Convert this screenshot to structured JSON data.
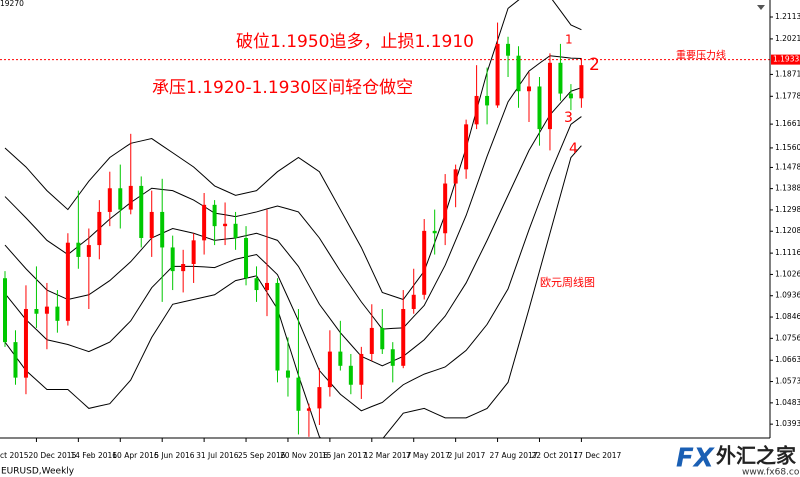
{
  "chart_data": {
    "type": "candlestick",
    "symbol_label": "EURUSD,Weekly",
    "corner_label": "19270",
    "x_clipped_label": "ct 2015",
    "categories": [
      null,
      null,
      null,
      "20 Dec 2015",
      null,
      null,
      null,
      "14 Feb 2016",
      null,
      null,
      null,
      "10 Apr 2016",
      null,
      null,
      null,
      "5 Jun 2016",
      null,
      null,
      null,
      "31 Jul 2016",
      null,
      null,
      null,
      "25 Sep 2016",
      null,
      null,
      null,
      "20 Nov 2016",
      null,
      null,
      null,
      "15 Jan 2017",
      null,
      null,
      null,
      "12 Mar 2017",
      null,
      null,
      null,
      "7 May 2017",
      null,
      null,
      null,
      "2 Jul 2017",
      null,
      null,
      null,
      "27 Aug 2017",
      null,
      null,
      null,
      "22 Oct 2017",
      null,
      null,
      null,
      "17 Dec 2017"
    ],
    "open": [
      1.101,
      1.074,
      1.059,
      1.088,
      1.086,
      1.089,
      1.083,
      1.116,
      1.11,
      1.115,
      1.129,
      1.139,
      1.13,
      1.14,
      1.118,
      1.129,
      1.114,
      1.104,
      1.107,
      1.117,
      1.132,
      1.123,
      1.124,
      1.118,
      1.101,
      1.096,
      1.099,
      1.062,
      1.059,
      1.045,
      1.046,
      1.055,
      1.07,
      1.064,
      1.056,
      1.069,
      1.08,
      1.071,
      1.064,
      1.088,
      1.094,
      1.121,
      1.12,
      1.141,
      1.147,
      1.166,
      1.178,
      1.174,
      1.2,
      1.195,
      1.18,
      1.182,
      1.164,
      1.192,
      1.179,
      1.177
    ],
    "high": [
      1.104,
      1.079,
      1.098,
      1.106,
      1.099,
      1.096,
      1.12,
      1.138,
      1.122,
      1.134,
      1.146,
      1.149,
      1.162,
      1.144,
      1.138,
      1.143,
      1.119,
      1.113,
      1.12,
      1.137,
      1.134,
      1.133,
      1.129,
      1.123,
      1.106,
      1.13,
      1.101,
      1.076,
      1.088,
      1.048,
      1.063,
      1.079,
      1.083,
      1.069,
      1.072,
      1.09,
      1.088,
      1.074,
      1.096,
      1.105,
      1.126,
      1.13,
      1.145,
      1.149,
      1.168,
      1.191,
      1.19,
      1.209,
      1.203,
      1.199,
      1.188,
      1.186,
      1.196,
      1.2,
      1.183,
      1.194
    ],
    "low": [
      1.072,
      1.056,
      1.052,
      1.08,
      1.071,
      1.078,
      1.081,
      1.105,
      1.088,
      1.109,
      1.123,
      1.122,
      1.128,
      1.114,
      1.11,
      1.091,
      1.096,
      1.095,
      1.099,
      1.111,
      1.115,
      1.115,
      1.113,
      1.098,
      1.091,
      1.085,
      1.057,
      1.051,
      1.035,
      1.034,
      1.039,
      1.051,
      1.062,
      1.052,
      1.05,
      1.066,
      1.069,
      1.057,
      1.063,
      1.086,
      1.092,
      1.111,
      1.115,
      1.131,
      1.143,
      1.164,
      1.166,
      1.173,
      1.186,
      1.173,
      1.167,
      1.157,
      1.155,
      1.176,
      1.172,
      1.173
    ],
    "close": [
      1.074,
      1.059,
      1.088,
      1.086,
      1.089,
      1.083,
      1.116,
      1.11,
      1.115,
      1.129,
      1.139,
      1.13,
      1.14,
      1.118,
      1.129,
      1.114,
      1.104,
      1.107,
      1.117,
      1.132,
      1.123,
      1.124,
      1.118,
      1.101,
      1.096,
      1.099,
      1.062,
      1.059,
      1.045,
      1.046,
      1.055,
      1.07,
      1.064,
      1.056,
      1.069,
      1.08,
      1.071,
      1.064,
      1.088,
      1.094,
      1.121,
      1.12,
      1.141,
      1.147,
      1.166,
      1.178,
      1.174,
      1.2,
      1.195,
      1.18,
      1.182,
      1.164,
      1.192,
      1.179,
      1.177,
      1.191
    ],
    "up_color": "#ff0000",
    "down_color": "#00c800",
    "bands": [
      {
        "color": "#000000",
        "values": [
          1.156,
          1.152,
          1.148,
          1.143,
          1.138,
          1.134,
          1.13,
          1.136,
          1.142,
          1.147,
          1.152,
          1.155,
          1.158,
          1.159,
          1.16,
          1.157,
          1.154,
          1.151,
          1.148,
          1.144,
          1.14,
          1.138,
          1.136,
          1.137,
          1.138,
          1.142,
          1.146,
          1.149,
          1.152,
          1.149,
          1.146,
          1.138,
          1.13,
          1.122,
          1.114,
          1.1045,
          1.095,
          1.0935,
          1.092,
          1.098,
          1.104,
          1.116,
          1.128,
          1.142,
          1.156,
          1.172,
          1.188,
          1.2015,
          1.215,
          1.2185,
          1.222,
          1.221,
          1.22,
          1.214,
          1.208,
          1.206
        ]
      },
      {
        "color": "#000000",
        "values": [
          1.1355,
          1.131,
          1.1265,
          1.1218,
          1.117,
          1.114,
          1.111,
          1.1145,
          1.118,
          1.122,
          1.126,
          1.1295,
          1.133,
          1.136,
          1.139,
          1.1385,
          1.138,
          1.136,
          1.134,
          1.1313,
          1.1285,
          1.1278,
          1.127,
          1.128,
          1.129,
          1.1303,
          1.1315,
          1.1303,
          1.129,
          1.1235,
          1.118,
          1.111,
          1.104,
          1.0975,
          1.091,
          1.0853,
          1.0795,
          1.0798,
          1.08,
          1.0848,
          1.0895,
          1.098,
          1.1065,
          1.117,
          1.1275,
          1.14,
          1.1525,
          1.164,
          1.1755,
          1.182,
          1.1885,
          1.1918,
          1.195,
          1.1945,
          1.194,
          1.1938
        ]
      },
      {
        "color": "#000000",
        "values": [
          1.115,
          1.11,
          1.105,
          1.1005,
          1.096,
          1.094,
          1.092,
          1.093,
          1.094,
          1.097,
          1.1,
          1.104,
          1.108,
          1.113,
          1.118,
          1.12,
          1.122,
          1.121,
          1.12,
          1.1185,
          1.117,
          1.1175,
          1.118,
          1.119,
          1.12,
          1.1185,
          1.117,
          1.1115,
          1.106,
          1.098,
          1.09,
          1.084,
          1.078,
          1.073,
          1.068,
          1.066,
          1.064,
          1.066,
          1.068,
          1.0715,
          1.075,
          1.08,
          1.085,
          1.092,
          1.099,
          1.108,
          1.117,
          1.1265,
          1.136,
          1.1455,
          1.155,
          1.1625,
          1.17,
          1.175,
          1.18,
          1.1815
        ]
      },
      {
        "color": "#000000",
        "values": [
          1.0945,
          1.089,
          1.0835,
          1.0793,
          1.075,
          1.074,
          1.073,
          1.0715,
          1.07,
          1.072,
          1.074,
          1.0785,
          1.083,
          1.09,
          1.097,
          1.1015,
          1.106,
          1.106,
          1.106,
          1.1058,
          1.1055,
          1.1073,
          1.109,
          1.11,
          1.111,
          1.1068,
          1.1025,
          1.0928,
          1.083,
          1.0725,
          1.062,
          1.057,
          1.052,
          1.0485,
          1.045,
          1.0468,
          1.0485,
          1.0523,
          1.056,
          1.0583,
          1.0605,
          1.062,
          1.0635,
          1.067,
          1.0705,
          1.076,
          1.0815,
          1.089,
          1.0965,
          1.109,
          1.1215,
          1.1333,
          1.145,
          1.1555,
          1.166,
          1.1693
        ]
      },
      {
        "color": "#000000",
        "values": [
          1.074,
          1.068,
          1.062,
          1.058,
          1.054,
          1.054,
          1.054,
          1.05,
          1.046,
          1.047,
          1.048,
          1.053,
          1.058,
          1.067,
          1.076,
          1.083,
          1.09,
          1.091,
          1.092,
          1.093,
          1.094,
          1.097,
          1.1,
          1.101,
          1.102,
          1.095,
          1.088,
          1.074,
          1.06,
          1.047,
          1.034,
          1.03,
          1.026,
          1.024,
          1.022,
          1.0275,
          1.033,
          1.0385,
          1.044,
          1.045,
          1.046,
          1.044,
          1.042,
          1.042,
          1.042,
          1.044,
          1.046,
          1.0515,
          1.057,
          1.0725,
          1.088,
          1.104,
          1.12,
          1.136,
          1.152,
          1.157
        ]
      }
    ],
    "ylim": [
      1.0335,
      1.216
    ],
    "yticks": [
      1.21135,
      {
        "value": 1.2021,
        "label": "1.20210"
      },
      {
        "value": 1.1871,
        "label": "1.18710"
      },
      1.17785,
      {
        "value": 1.1661,
        "label": "1.16610"
      },
      1.15605,
      {
        "value": 1.1478,
        "label": "1.14780"
      },
      1.13885,
      1.12985,
      1.12085,
      {
        "value": 1.1116,
        "label": "1.11160"
      },
      {
        "value": 1.1026,
        "label": "1.10260"
      },
      {
        "value": 1.0936,
        "label": "1.09360"
      },
      {
        "value": 1.0846,
        "label": "1.08460"
      },
      {
        "value": 1.0756,
        "label": "1.07560"
      },
      1.06635,
      1.05735,
      1.04835,
      1.03935
    ],
    "resistance": {
      "value": 1.19335,
      "text": "重要压力线",
      "color": "#ff0000"
    },
    "annotations": [
      "破位1.1950追多，止损1.1910",
      "承压1.1920-1.1930区间轻仓做空",
      "欧元周线图"
    ],
    "band_labels": [
      "1",
      "2",
      "3",
      "4"
    ]
  },
  "watermark": {
    "brand": "FX",
    "name": "外汇之家",
    "url": "www.fx68.com"
  }
}
